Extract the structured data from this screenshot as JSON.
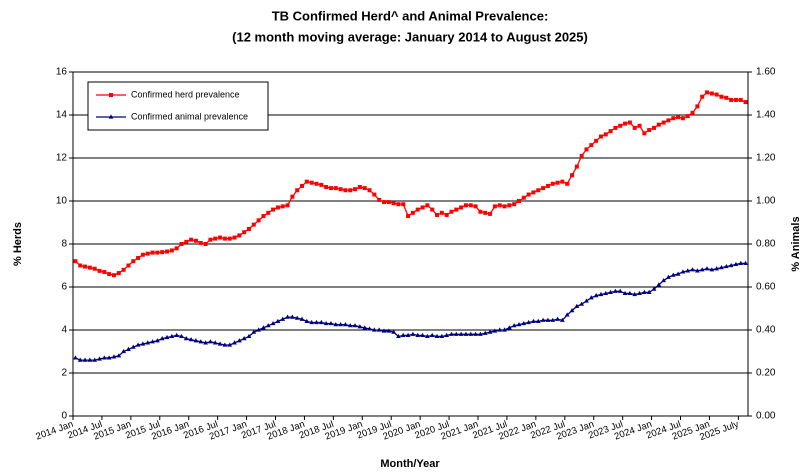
{
  "chart_data": {
    "type": "line",
    "title": "TB Confirmed Herd^ and Animal Prevalence:",
    "subtitle": "(12 month moving average: January 2014 to August 2025)",
    "y_label": "% Herds",
    "y2_label": "% Animals",
    "x_label": "Month/Year",
    "categories": [
      "2014 Jan",
      null,
      null,
      null,
      null,
      null,
      "2014 Jul",
      null,
      null,
      null,
      null,
      null,
      "2015 Jan",
      null,
      null,
      null,
      null,
      null,
      "2015 Jul",
      null,
      null,
      null,
      null,
      null,
      "2016 Jan",
      null,
      null,
      null,
      null,
      null,
      "2016 Jul",
      null,
      null,
      null,
      null,
      null,
      "2017 Jan",
      null,
      null,
      null,
      null,
      null,
      "2017 Jul",
      null,
      null,
      null,
      null,
      null,
      "2018 Jan",
      null,
      null,
      null,
      null,
      null,
      "2018 Jul",
      null,
      null,
      null,
      null,
      null,
      "2019 Jan",
      null,
      null,
      null,
      null,
      null,
      "2019 Jul",
      null,
      null,
      null,
      null,
      null,
      "2020 Jan",
      null,
      null,
      null,
      null,
      null,
      "2020 Jul",
      null,
      null,
      null,
      null,
      null,
      "2021 Jan",
      null,
      null,
      null,
      null,
      null,
      "2021 Jul",
      null,
      null,
      null,
      null,
      null,
      "2022 Jan",
      null,
      null,
      null,
      null,
      null,
      "2022 Jul",
      null,
      null,
      null,
      null,
      null,
      "2023 Jan",
      null,
      null,
      null,
      null,
      null,
      "2023 Jul",
      null,
      null,
      null,
      null,
      null,
      "2024 Jan",
      null,
      null,
      null,
      null,
      null,
      "2024 Jul",
      null,
      null,
      null,
      null,
      null,
      "2025 Jan",
      null,
      null,
      null,
      null,
      null,
      "2025 July",
      null
    ],
    "series": [
      {
        "name": "Confirmed herd prevalence",
        "color": "#ff0000",
        "marker": "square",
        "axis": "y",
        "values": [
          7.2,
          7.0,
          6.95,
          6.9,
          6.85,
          6.75,
          6.7,
          6.6,
          6.55,
          6.65,
          6.8,
          7.0,
          7.2,
          7.35,
          7.5,
          7.55,
          7.6,
          7.6,
          7.62,
          7.65,
          7.7,
          7.8,
          8.0,
          8.1,
          8.2,
          8.15,
          8.05,
          8.0,
          8.2,
          8.25,
          8.3,
          8.25,
          8.25,
          8.3,
          8.4,
          8.55,
          8.7,
          8.9,
          9.1,
          9.3,
          9.45,
          9.6,
          9.7,
          9.75,
          9.8,
          10.2,
          10.5,
          10.7,
          10.9,
          10.85,
          10.8,
          10.75,
          10.65,
          10.6,
          10.6,
          10.55,
          10.5,
          10.5,
          10.55,
          10.65,
          10.6,
          10.5,
          10.3,
          10.05,
          9.95,
          9.95,
          9.9,
          9.85,
          9.85,
          9.3,
          9.45,
          9.6,
          9.7,
          9.8,
          9.6,
          9.35,
          9.45,
          9.35,
          9.5,
          9.6,
          9.7,
          9.8,
          9.8,
          9.75,
          9.5,
          9.45,
          9.4,
          9.75,
          9.8,
          9.75,
          9.8,
          9.85,
          10.0,
          10.15,
          10.3,
          10.4,
          10.5,
          10.6,
          10.7,
          10.8,
          10.85,
          10.9,
          10.8,
          11.2,
          11.6,
          12.1,
          12.4,
          12.6,
          12.8,
          13.0,
          13.1,
          13.25,
          13.4,
          13.5,
          13.6,
          13.65,
          13.4,
          13.5,
          13.15,
          13.3,
          13.4,
          13.55,
          13.65,
          13.75,
          13.85,
          13.9,
          13.85,
          13.95,
          14.1,
          14.4,
          14.85,
          15.05,
          15.0,
          14.95,
          14.85,
          14.8,
          14.7,
          14.7,
          14.7,
          14.6
        ]
      },
      {
        "name": "Confirmed animal prevalence",
        "color": "#000080",
        "marker": "triangle",
        "axis": "y2",
        "values": [
          0.27,
          0.26,
          0.26,
          0.26,
          0.26,
          0.265,
          0.27,
          0.27,
          0.275,
          0.28,
          0.3,
          0.31,
          0.32,
          0.33,
          0.335,
          0.34,
          0.345,
          0.35,
          0.36,
          0.365,
          0.37,
          0.375,
          0.37,
          0.36,
          0.355,
          0.35,
          0.345,
          0.34,
          0.345,
          0.34,
          0.335,
          0.33,
          0.33,
          0.34,
          0.35,
          0.36,
          0.37,
          0.39,
          0.4,
          0.41,
          0.42,
          0.43,
          0.44,
          0.45,
          0.46,
          0.46,
          0.455,
          0.45,
          0.44,
          0.435,
          0.435,
          0.435,
          0.43,
          0.43,
          0.425,
          0.425,
          0.425,
          0.42,
          0.42,
          0.415,
          0.41,
          0.405,
          0.4,
          0.4,
          0.395,
          0.395,
          0.39,
          0.37,
          0.375,
          0.375,
          0.38,
          0.375,
          0.375,
          0.37,
          0.375,
          0.37,
          0.37,
          0.375,
          0.38,
          0.38,
          0.38,
          0.38,
          0.38,
          0.38,
          0.38,
          0.385,
          0.39,
          0.395,
          0.4,
          0.4,
          0.41,
          0.42,
          0.425,
          0.43,
          0.435,
          0.44,
          0.44,
          0.445,
          0.445,
          0.445,
          0.45,
          0.445,
          0.47,
          0.49,
          0.51,
          0.52,
          0.535,
          0.55,
          0.56,
          0.565,
          0.57,
          0.575,
          0.58,
          0.58,
          0.57,
          0.57,
          0.565,
          0.57,
          0.575,
          0.575,
          0.59,
          0.61,
          0.63,
          0.645,
          0.655,
          0.66,
          0.67,
          0.675,
          0.68,
          0.675,
          0.68,
          0.685,
          0.68,
          0.685,
          0.69,
          0.695,
          0.7,
          0.705,
          0.71,
          0.71
        ]
      }
    ],
    "ylim": [
      0,
      16
    ],
    "yticks": [
      0,
      2,
      4,
      6,
      8,
      10,
      12,
      14,
      16
    ],
    "y2lim": [
      0,
      1.6
    ],
    "y2ticks": [
      {
        "value": 0,
        "label": "0.00"
      },
      {
        "value": 0.2,
        "label": "0.20"
      },
      {
        "value": 0.4,
        "label": "0.40"
      },
      {
        "value": 0.6,
        "label": "0.60"
      },
      {
        "value": 0.8,
        "label": "0.80"
      },
      {
        "value": 1,
        "label": "1.00"
      },
      {
        "value": 1.2,
        "label": "1.20"
      },
      {
        "value": 1.4,
        "label": "1.40"
      },
      {
        "value": 1.6,
        "label": "1.60"
      }
    ],
    "grid": true,
    "legend": "upper left"
  }
}
